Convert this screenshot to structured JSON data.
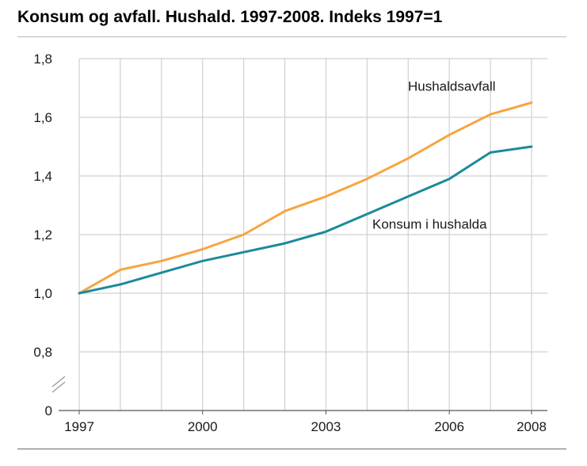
{
  "chart_data": {
    "type": "line",
    "title": "Konsum og avfall. Hushald. 1997-2008. Indeks 1997=1",
    "xlabel": "",
    "ylabel": "",
    "x": [
      1997,
      1998,
      1999,
      2000,
      2001,
      2002,
      2003,
      2004,
      2005,
      2006,
      2007,
      2008
    ],
    "xlim": [
      1997,
      2008
    ],
    "x_ticks": [
      1997,
      2000,
      2003,
      2006,
      2008
    ],
    "y_ticks": [
      "0",
      "0,8",
      "1,0",
      "1,2",
      "1,4",
      "1,6",
      "1,8"
    ],
    "ylim": [
      0.8,
      1.8
    ],
    "axis_break": true,
    "grid": true,
    "series": [
      {
        "name": "Hushaldsavfall",
        "color": "#f7a541",
        "values": [
          1.0,
          1.08,
          1.11,
          1.15,
          1.2,
          1.28,
          1.33,
          1.39,
          1.46,
          1.54,
          1.61,
          1.65
        ]
      },
      {
        "name": "Konsum i hushalda",
        "color": "#1b8a9c",
        "values": [
          1.0,
          1.03,
          1.07,
          1.11,
          1.14,
          1.17,
          1.21,
          1.27,
          1.33,
          1.39,
          1.48,
          1.5
        ]
      }
    ]
  }
}
